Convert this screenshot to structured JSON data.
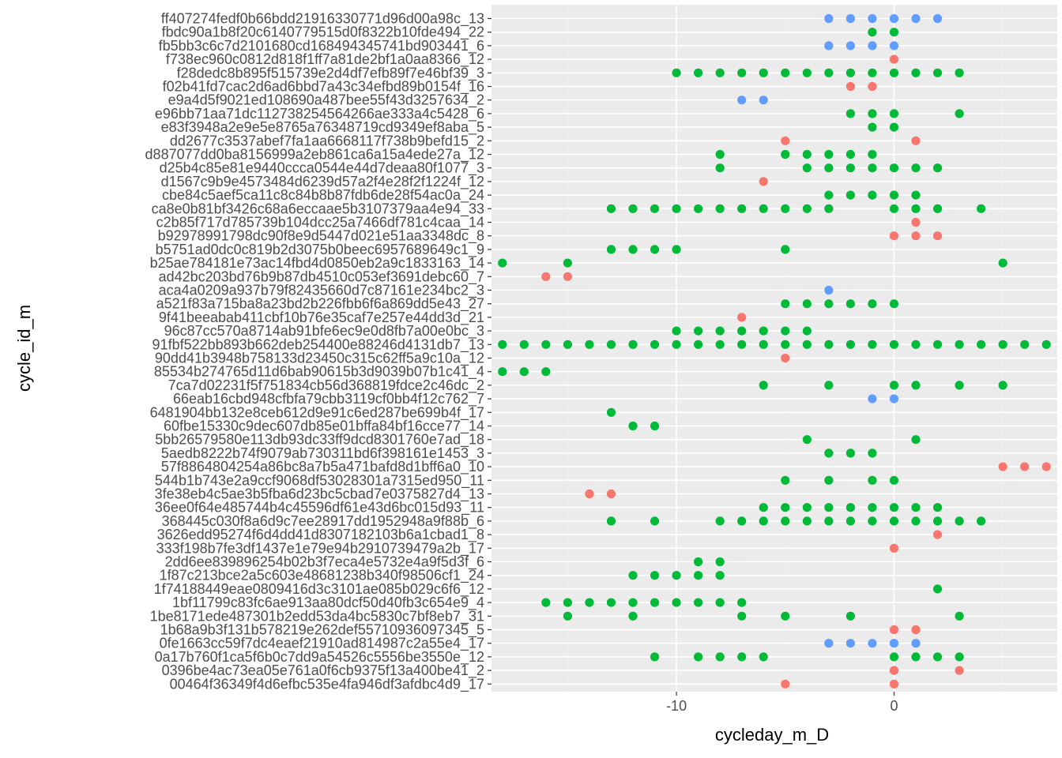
{
  "chart_data": {
    "type": "scatter",
    "xlabel": "cycleday_m_D",
    "ylabel": "cycle_id_m",
    "xlim": [
      -18.5,
      7.5
    ],
    "x_ticks": [
      -10,
      0
    ],
    "x_tick_labels": [
      "-10",
      "0"
    ],
    "grid": true,
    "legend": "none",
    "colors": {
      "red": "#F8766D",
      "green": "#00BA38",
      "blue": "#619CFF"
    },
    "categories": [
      "ff407274fedf0b66bdd21916330771d96d00a98c_13",
      "fbdc90a1b8f20c6140779515d0f8322b10fde494_22",
      "fb5bb3c6c7d2101680cd168494345741bd903441_6",
      "f738ec960c0812d818f1ff7a81de2bf1a0aa8366_12",
      "f28dedc8b895f515739e2d4df7efb89f7e46bf39_3",
      "f02b41fd7cac2d6ad6bbd7a43c34efbd89b0154f_16",
      "e9a4d5f9021ed108690a487bee55f43d3257634_2",
      "e96bb71aa71dc112738254564266ae333a4c5428_6",
      "e83f3948a2e9e5e8765a76348719cd9349ef8aba_5",
      "dd2677c3537abef7fa1aa6668117f738b9befd15_2",
      "d887077dd0ba8156999a2eb861ca6a15a4ede27a_12",
      "d25b4c85e81e9440ccca0544e44d7deaa80f1077_3",
      "d1567c9b9e4573484d6239d57a2f4e28f2f1224f_12",
      "cbe84c5aef5ca11c8c84b8b87fdb6de28f54ac0a_24",
      "ca8e0b81bf3426c68a6eccaae5b3107379aa4e94_33",
      "c2b85f717d785739b104dcc25a7466df781c4caa_14",
      "b92978991798dc90f8e9d5447d021e51aa3348dc_8",
      "b5751ad0dc0c819b2d3075b0beec6957689649c1_9",
      "b25ae784181e73ac14fbd4d0850eb2a9c1833163_14",
      "ad42bc203bd76b9b87db4510c053ef3691debc60_7",
      "aca4a0209a937b79f82435660d7c87161e234bc2_3",
      "a521f83a715ba8a23bd2b226fbb6f6a869dd5e43_27",
      "9f41beeabab411cbf10b76e35caf7e257e44dd3d_21",
      "96c87cc570a8714ab91bfe6ec9e0d8fb7a00e0bc_3",
      "91fbf522bb893b662deb254400e88246d4131db7_13",
      "90dd41b3948b758133d23450c315c62ff5a9c10a_12",
      "85534b274765d11d6bab90615b3d9039b07b1c41_4",
      "7ca7d02231f5f751834cb56d368819fdce2c46dc_2",
      "66eab16cbd948cfbfa79cbb3119cf0bb4f12c762_7",
      "6481904bb132e8ceb612d9e91c6ed287be699b4f_17",
      "60fbe15330c9dec607db85e01bffa84bf16cce77_14",
      "5bb26579580e113db93dc33ff9dcd8301760e7ad_18",
      "5aedb8222b74f9079ab730311bd6f398161e1453_3",
      "57f8864804254a86bc8a7b5a471bafd8d1bff6a0_10",
      "544b1b743e2a9ccf9068df53028301a7315ed950_11",
      "3fe38eb4c5ae3b5fba6d23bc5cbad7e0375827d4_13",
      "36ee0f64e485744b4c45596df61e43d6bc015d93_11",
      "368445c030f8a6d9c7ee28917dd1952948a9f88b_6",
      "3626edd95274f6d4dd41d8307182103b6a1cbad1_8",
      "333f198b7fe3df1437e1e79e94b2910739479a2b_17",
      "2dd6ee839896254b02b3f7eca4e5732e4a9f5d3f_6",
      "1f87c213bce2a5c603e48681238b340f98506cf1_24",
      "1f74188449eae0809416d3c3101ae085b029c6f6_12",
      "1bf11799c83fc6ae913aa80dcf50d40fb3c654e9_4",
      "1be8171ede487301b2edd53da4bc5830c7bf8eb7_31",
      "1b68a9b3f131b578219e262def55710936097345_5",
      "0fe1663cc59f7dc4eaef21910ad814987c2a55e4_17",
      "0a17b760f1ca5f6b0c7dd9a54526c5556be3550e_12",
      "0396be4ac73ea05e761a0f6cb9375f13a400be41_2",
      "00464f36349f4d6efbc535e4fa946df3afdbc4d9_17"
    ],
    "rows": [
      {
        "color": "blue",
        "x": [
          -3,
          -2,
          -1,
          0,
          1,
          2
        ]
      },
      {
        "color": "green",
        "x": [
          -1,
          0
        ]
      },
      {
        "color": "blue",
        "x": [
          -3,
          -2,
          -1,
          0
        ]
      },
      {
        "color": "red",
        "x": [
          0
        ]
      },
      {
        "color": "green",
        "x": [
          -10,
          -9,
          -8,
          -7,
          -6,
          -5,
          -4,
          -3,
          -2,
          -1,
          0,
          1,
          2,
          3
        ]
      },
      {
        "color": "red",
        "x": [
          -2,
          -1
        ]
      },
      {
        "color": "blue",
        "x": [
          -7,
          -6
        ]
      },
      {
        "color": "green",
        "x": [
          -2,
          -1,
          0,
          3
        ]
      },
      {
        "color": "green",
        "x": [
          -1,
          0
        ]
      },
      {
        "color": "red",
        "x": [
          -5,
          1
        ]
      },
      {
        "color": "green",
        "x": [
          -8,
          -5,
          -4,
          -3,
          -2,
          -1
        ]
      },
      {
        "color": "green",
        "x": [
          -8,
          -4,
          -3,
          -2,
          -1,
          0,
          1,
          2
        ]
      },
      {
        "color": "red",
        "x": [
          -6
        ]
      },
      {
        "color": "green",
        "x": [
          -3,
          -2,
          -1,
          0,
          1
        ]
      },
      {
        "color": "green",
        "x": [
          -13,
          -12,
          -11,
          -10,
          -9,
          -8,
          -7,
          -6,
          -5,
          -4,
          -3,
          0,
          1,
          2,
          4
        ]
      },
      {
        "color": "red",
        "x": [
          1
        ]
      },
      {
        "color": "red",
        "x": [
          0,
          1,
          2
        ]
      },
      {
        "color": "green",
        "x": [
          -13,
          -12,
          -11,
          -10,
          -5
        ]
      },
      {
        "color": "green",
        "x": [
          -18,
          -15,
          5
        ]
      },
      {
        "color": "red",
        "x": [
          -16,
          -15
        ]
      },
      {
        "color": "blue",
        "x": [
          -3
        ]
      },
      {
        "color": "green",
        "x": [
          -5,
          -4,
          -3,
          -2,
          -1,
          0
        ]
      },
      {
        "color": "red",
        "x": [
          -7
        ]
      },
      {
        "color": "green",
        "x": [
          -10,
          -9,
          -8,
          -7,
          -6,
          -5,
          -4
        ]
      },
      {
        "color": "green",
        "x": [
          -18,
          -17,
          -16,
          -15,
          -14,
          -13,
          -12,
          -11,
          -10,
          -9,
          -8,
          -7,
          -6,
          -5,
          -4,
          -3,
          -2,
          -1,
          0,
          1,
          2,
          3,
          4,
          5,
          6,
          7
        ]
      },
      {
        "color": "red",
        "x": [
          -5
        ]
      },
      {
        "color": "green",
        "x": [
          -18,
          -17,
          -16
        ]
      },
      {
        "color": "green",
        "x": [
          -6,
          -3,
          0,
          1,
          3,
          5
        ]
      },
      {
        "color": "blue",
        "x": [
          -1,
          0
        ]
      },
      {
        "color": "green",
        "x": [
          -13
        ]
      },
      {
        "color": "green",
        "x": [
          -12,
          -11
        ]
      },
      {
        "color": "green",
        "x": [
          -4,
          1
        ]
      },
      {
        "color": "green",
        "x": [
          -3,
          -2,
          -1
        ]
      },
      {
        "color": "red",
        "x": [
          5,
          6,
          7
        ]
      },
      {
        "color": "green",
        "x": [
          -5,
          -3,
          -1,
          0
        ]
      },
      {
        "color": "red",
        "x": [
          -14,
          -13
        ]
      },
      {
        "color": "green",
        "x": [
          -6,
          -5,
          -4,
          -3,
          -2,
          -1,
          0,
          1,
          2
        ]
      },
      {
        "color": "green",
        "x": [
          -13,
          -11,
          -8,
          -7,
          -6,
          -5,
          -4,
          -3,
          -2,
          -1,
          0,
          1,
          2,
          3,
          4
        ]
      },
      {
        "color": "red",
        "x": [
          2
        ]
      },
      {
        "color": "red",
        "x": [
          0
        ]
      },
      {
        "color": "green",
        "x": [
          -9,
          -8
        ]
      },
      {
        "color": "green",
        "x": [
          -12,
          -11,
          -10,
          -9,
          -8
        ]
      },
      {
        "color": "green",
        "x": [
          2
        ]
      },
      {
        "color": "green",
        "x": [
          -16,
          -15,
          -14,
          -13,
          -12,
          -11,
          -10,
          -9,
          -8,
          -7
        ]
      },
      {
        "color": "green",
        "x": [
          -15,
          -12,
          -7,
          -5,
          -2,
          3
        ]
      },
      {
        "color": "red",
        "x": [
          0,
          1
        ]
      },
      {
        "color": "blue",
        "x": [
          -3,
          -2,
          -1,
          0,
          1
        ]
      },
      {
        "color": "green",
        "x": [
          -11,
          -9,
          -8,
          -7,
          -6,
          0,
          1,
          2,
          3
        ]
      },
      {
        "color": "red",
        "x": [
          0,
          3
        ]
      },
      {
        "color": "red",
        "x": [
          -5,
          0
        ]
      }
    ]
  }
}
